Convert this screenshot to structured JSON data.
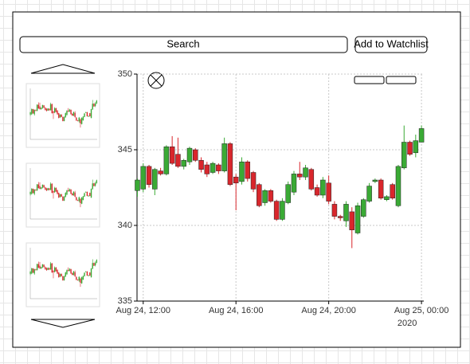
{
  "search": {
    "label": "Search"
  },
  "watchlist_button": {
    "label": "Add to Watchlist"
  },
  "chart_data": {
    "type": "candlestick",
    "x": [
      "2020-08-24T11:45",
      "2020-08-24T12:00",
      "2020-08-24T12:15",
      "2020-08-24T12:30",
      "2020-08-24T12:45",
      "2020-08-24T13:00",
      "2020-08-24T13:15",
      "2020-08-24T13:30",
      "2020-08-24T13:45",
      "2020-08-24T14:00",
      "2020-08-24T14:15",
      "2020-08-24T14:30",
      "2020-08-24T14:45",
      "2020-08-24T15:00",
      "2020-08-24T15:15",
      "2020-08-24T15:30",
      "2020-08-24T15:45",
      "2020-08-24T16:00",
      "2020-08-24T16:15",
      "2020-08-24T16:30",
      "2020-08-24T16:45",
      "2020-08-24T17:00",
      "2020-08-24T17:15",
      "2020-08-24T17:30",
      "2020-08-24T17:45",
      "2020-08-24T18:00",
      "2020-08-24T18:15",
      "2020-08-24T18:30",
      "2020-08-24T18:45",
      "2020-08-24T19:00",
      "2020-08-24T19:15",
      "2020-08-24T19:30",
      "2020-08-24T19:45",
      "2020-08-24T20:00",
      "2020-08-24T20:15",
      "2020-08-24T20:30",
      "2020-08-24T20:45",
      "2020-08-24T21:00",
      "2020-08-24T21:15",
      "2020-08-24T21:30",
      "2020-08-24T21:45",
      "2020-08-24T22:00",
      "2020-08-24T22:15",
      "2020-08-24T22:30",
      "2020-08-24T22:45",
      "2020-08-24T23:00",
      "2020-08-24T23:15",
      "2020-08-24T23:30",
      "2020-08-24T23:45",
      "2020-08-25T00:00"
    ],
    "open": [
      342.3,
      342.4,
      343.9,
      342.4,
      343.6,
      343.4,
      345.2,
      344.7,
      343.9,
      344.2,
      345.0,
      344.3,
      344.0,
      343.5,
      344.0,
      343.6,
      345.4,
      343.2,
      342.9,
      344.2,
      343.5,
      342.7,
      341.5,
      342.3,
      341.6,
      340.4,
      341.5,
      342.2,
      343.4,
      343.2,
      343.7,
      342.5,
      342.0,
      342.8,
      341.4,
      340.6,
      340.3,
      340.9,
      339.5,
      340.6,
      341.6,
      342.9,
      343.0,
      341.7,
      342.7,
      341.3,
      343.8,
      345.5,
      344.8,
      345.5
    ],
    "high": [
      343.1,
      344.1,
      344.0,
      343.8,
      343.8,
      345.3,
      345.9,
      345.8,
      344.4,
      345.2,
      345.1,
      344.5,
      344.2,
      344.2,
      344.1,
      345.8,
      345.5,
      343.4,
      344.5,
      344.3,
      343.6,
      342.8,
      342.4,
      342.4,
      341.7,
      341.8,
      342.9,
      343.6,
      344.2,
      344.0,
      343.8,
      342.7,
      343.2,
      343.3,
      341.6,
      340.7,
      341.6,
      341.2,
      341.5,
      341.8,
      342.8,
      343.1,
      343.1,
      342.0,
      342.8,
      344.0,
      346.6,
      345.6,
      346.0,
      346.6
    ],
    "low": [
      341.9,
      342.2,
      342.5,
      342.0,
      343.3,
      343.3,
      344.0,
      343.8,
      343.7,
      344.0,
      344.2,
      343.5,
      343.2,
      343.4,
      343.4,
      343.5,
      342.6,
      341.0,
      342.7,
      342.9,
      342.2,
      341.2,
      341.3,
      341.5,
      340.3,
      340.3,
      341.4,
      342.0,
      343.0,
      343.0,
      342.3,
      341.9,
      341.8,
      341.4,
      340.4,
      340.3,
      339.9,
      338.5,
      339.4,
      340.5,
      341.5,
      342.8,
      341.7,
      341.6,
      341.7,
      341.2,
      343.7,
      344.6,
      344.5,
      345.5
    ],
    "close": [
      343.0,
      343.9,
      342.7,
      343.7,
      343.4,
      345.2,
      344.1,
      343.9,
      344.3,
      345.1,
      344.3,
      343.7,
      343.4,
      344.1,
      343.6,
      345.4,
      342.7,
      342.8,
      344.2,
      343.1,
      342.4,
      341.3,
      342.3,
      341.6,
      340.4,
      341.6,
      342.7,
      343.4,
      343.2,
      343.8,
      342.4,
      342.0,
      343.0,
      341.6,
      340.6,
      340.5,
      341.4,
      339.7,
      341.3,
      341.7,
      342.6,
      343.0,
      341.8,
      341.9,
      341.8,
      343.9,
      345.5,
      344.7,
      345.6,
      346.4
    ],
    "up_color": "#3aaa35",
    "down_color": "#d9262c",
    "xlim": [
      "2020-08-24T11:44",
      "2020-08-25T00:06"
    ],
    "xticks": [
      {
        "value": "2020-08-24T12:00",
        "label": "Aug 24, 12:00"
      },
      {
        "value": "2020-08-24T16:00",
        "label": "Aug 24, 16:00"
      },
      {
        "value": "2020-08-24T20:00",
        "label": "Aug 24, 20:00"
      },
      {
        "value": "2020-08-25T00:00",
        "label": "Aug 25, 00:00"
      }
    ],
    "year_label": "2020",
    "ylim": [
      335,
      350
    ],
    "yticks": [
      335,
      340,
      345,
      350
    ],
    "grid": true
  }
}
